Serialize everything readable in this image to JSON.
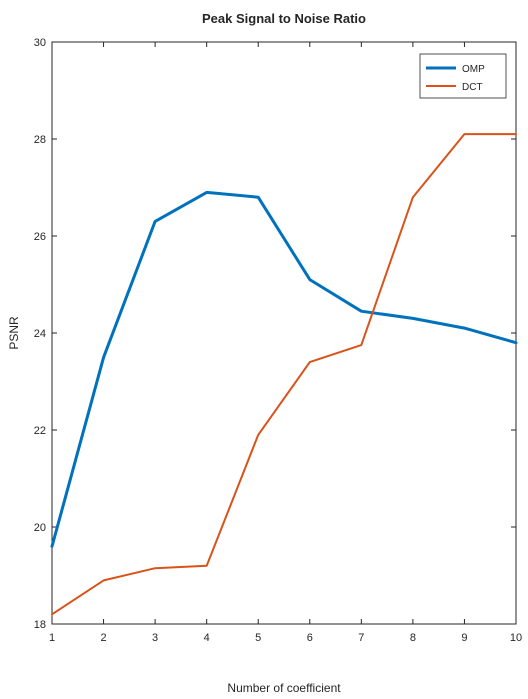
{
  "chart_data": {
    "type": "line",
    "title": "Peak Signal to Noise Ratio",
    "xlabel": "Number of coefficient",
    "ylabel": "PSNR",
    "x": [
      1,
      2,
      3,
      4,
      5,
      6,
      7,
      8,
      9,
      10
    ],
    "xlim": [
      1,
      10
    ],
    "ylim": [
      18,
      30
    ],
    "xticks": [
      "1",
      "2",
      "3",
      "4",
      "5",
      "6",
      "7",
      "8",
      "9",
      "10"
    ],
    "yticks": [
      "18",
      "20",
      "22",
      "24",
      "26",
      "28",
      "30"
    ],
    "grid": false,
    "legend": "top-right",
    "series": [
      {
        "name": "OMP",
        "color": "#0072BD",
        "values": [
          19.6,
          23.5,
          26.3,
          26.9,
          26.8,
          25.1,
          24.45,
          24.3,
          24.1,
          23.8
        ]
      },
      {
        "name": "DCT",
        "color": "#D95319",
        "values": [
          18.2,
          18.9,
          19.15,
          19.2,
          21.9,
          23.4,
          23.75,
          26.8,
          28.1,
          28.1
        ]
      }
    ]
  }
}
